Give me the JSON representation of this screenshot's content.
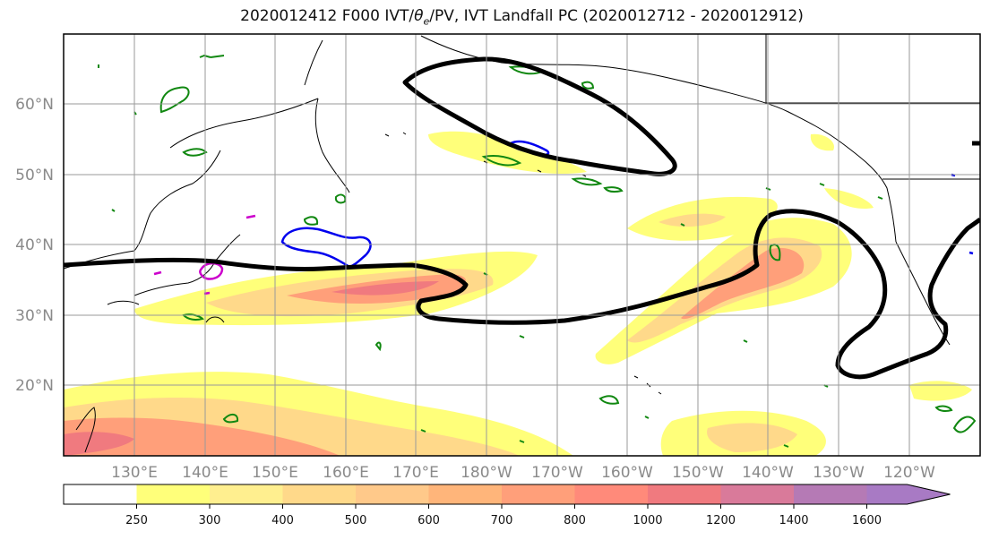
{
  "title_main": "2020012412 F000 IVT/",
  "title_theta": "θ",
  "title_sub": "e",
  "title_rest": "/PV, IVT Landfall PC (2020012712 - 2020012912)",
  "lat_labels": [
    "60°N",
    "50°N",
    "40°N",
    "30°N",
    "20°N"
  ],
  "lon_labels": [
    "130°E",
    "140°E",
    "150°E",
    "160°E",
    "170°E",
    "180°W",
    "170°W",
    "160°W",
    "150°W",
    "140°W",
    "130°W",
    "120°W"
  ],
  "colorbar": {
    "levels": [
      "250",
      "300",
      "400",
      "500",
      "600",
      "700",
      "800",
      "1000",
      "1200",
      "1400",
      "1600"
    ],
    "colors": [
      "#ffffff",
      "#ffff7a",
      "#ffef8f",
      "#ffd98a",
      "#ffc98a",
      "#ffb57a",
      "#ff9f7a",
      "#ff8a7a",
      "#f07a7f",
      "#d97a9a",
      "#b57ab5",
      "#a87ac4"
    ]
  },
  "contour_colors": {
    "pc_contour": "#000000",
    "theta_contour": "#118811",
    "pv_contour": "#0000ee",
    "extra_contour": "#cc00cc"
  }
}
